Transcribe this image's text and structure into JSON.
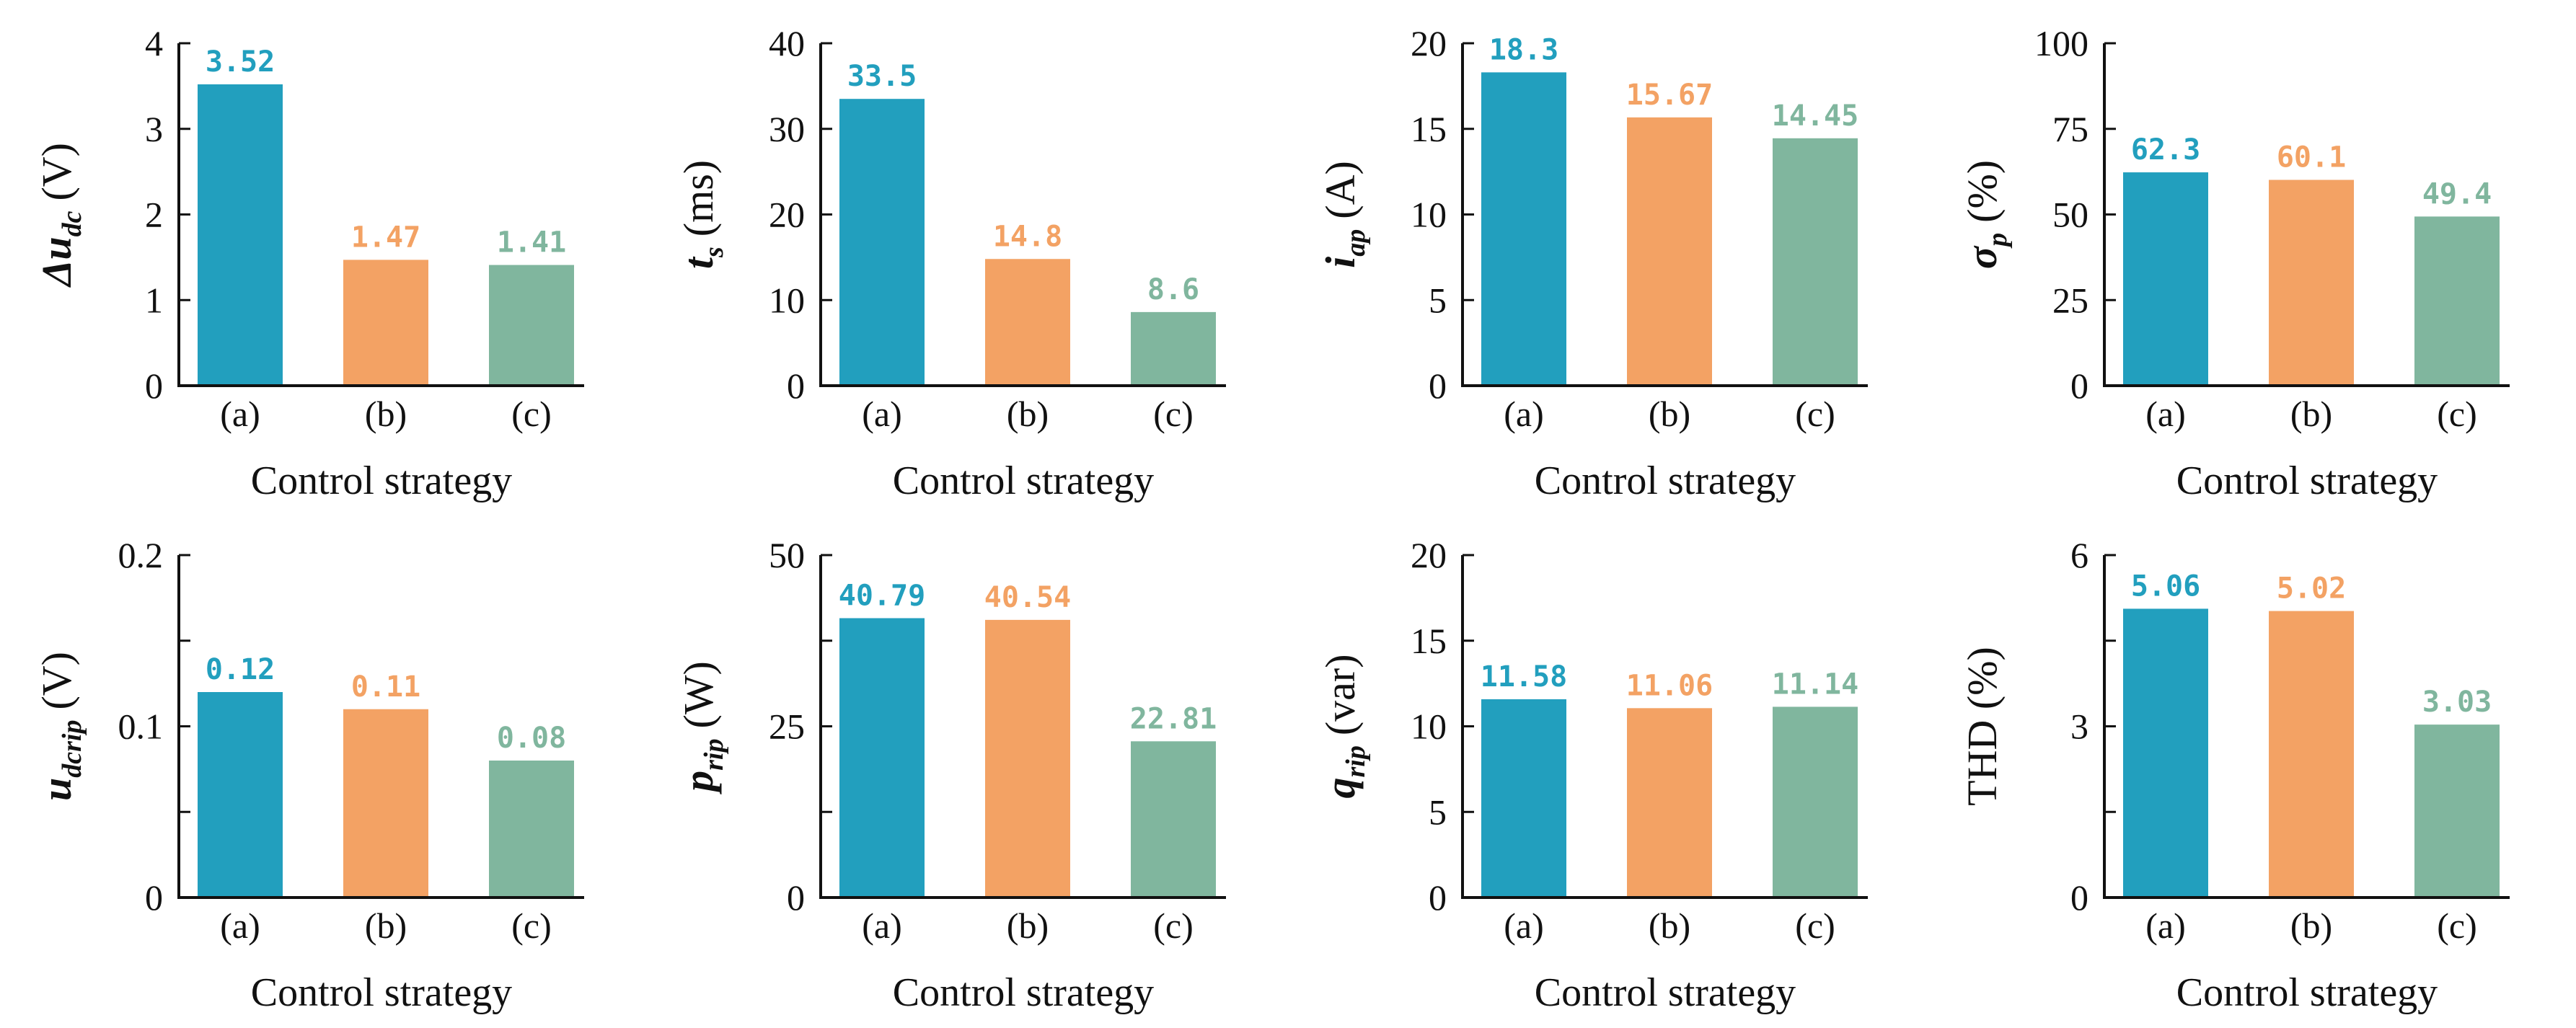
{
  "figure": {
    "caption": ""
  },
  "colors": {
    "a": "#229FBE",
    "b": "#F3A264",
    "c": "#80B69E",
    "axis": "#111111"
  },
  "chart_data": [
    {
      "type": "bar",
      "id": "delta-udc",
      "categories": [
        "(a)",
        "(b)",
        "(c)"
      ],
      "values": [
        3.52,
        1.47,
        1.41
      ],
      "value_labels": [
        "3.52",
        "1.47",
        "1.41"
      ],
      "ylim": [
        0,
        4
      ],
      "yticks": [
        0,
        1,
        2,
        3,
        4
      ],
      "ytick_labels": [
        "0",
        "1",
        "2",
        "3",
        "4"
      ],
      "xlabel": "Control strategy",
      "ylabel": {
        "symbol": "Δu",
        "sub": "dc",
        "unit": "(V)"
      }
    },
    {
      "type": "bar",
      "id": "ts",
      "categories": [
        "(a)",
        "(b)",
        "(c)"
      ],
      "values": [
        33.5,
        14.8,
        8.6
      ],
      "value_labels": [
        "33.5",
        "14.8",
        "8.6"
      ],
      "ylim": [
        0,
        40
      ],
      "yticks": [
        0,
        10,
        20,
        30,
        40
      ],
      "ytick_labels": [
        "0",
        "10",
        "20",
        "30",
        "40"
      ],
      "xlabel": "Control strategy",
      "ylabel": {
        "symbol": "t",
        "sub": "s",
        "unit": "(ms)"
      }
    },
    {
      "type": "bar",
      "id": "iap",
      "categories": [
        "(a)",
        "(b)",
        "(c)"
      ],
      "values": [
        18.3,
        15.67,
        14.45
      ],
      "value_labels": [
        "18.3",
        "15.67",
        "14.45"
      ],
      "ylim": [
        0,
        20
      ],
      "yticks": [
        0,
        5,
        10,
        15,
        20
      ],
      "ytick_labels": [
        "0",
        "5",
        "10",
        "15",
        "20"
      ],
      "xlabel": "Control strategy",
      "ylabel": {
        "symbol": "i",
        "sub": "ap",
        "unit": "(A)"
      }
    },
    {
      "type": "bar",
      "id": "sigma-p",
      "categories": [
        "(a)",
        "(b)",
        "(c)"
      ],
      "values": [
        62.3,
        60.1,
        49.4
      ],
      "value_labels": [
        "62.3",
        "60.1",
        "49.4"
      ],
      "ylim": [
        0,
        100
      ],
      "yticks": [
        0,
        25,
        50,
        75,
        100
      ],
      "ytick_labels": [
        "0",
        "25",
        "50",
        "75",
        "100"
      ],
      "xlabel": "Control strategy",
      "ylabel": {
        "symbol": "σ",
        "sub": "p",
        "unit": "(%)"
      }
    },
    {
      "type": "bar",
      "id": "udcrip",
      "categories": [
        "(a)",
        "(b)",
        "(c)"
      ],
      "values": [
        0.12,
        0.11,
        0.08
      ],
      "value_labels": [
        "0.12",
        "0.11",
        "0.08"
      ],
      "ylim": [
        0,
        0.2
      ],
      "yticks": [
        0,
        0.05,
        0.1,
        0.15,
        0.2
      ],
      "ytick_labels": [
        "0",
        "",
        "0.1",
        "",
        "0.2"
      ],
      "xlabel": "Control strategy",
      "ylabel": {
        "symbol": "u",
        "sub": "dcrip",
        "unit": "(V)"
      }
    },
    {
      "type": "bar",
      "id": "prip",
      "categories": [
        "(a)",
        "(b)",
        "(c)"
      ],
      "values": [
        40.79,
        40.54,
        22.81
      ],
      "value_labels": [
        "40.79",
        "40.54",
        "22.81"
      ],
      "ylim": [
        0,
        50
      ],
      "yticks": [
        0,
        12.5,
        25,
        37.5,
        50
      ],
      "ytick_labels": [
        "0",
        "",
        "25",
        "",
        "50"
      ],
      "xlabel": "Control strategy",
      "ylabel": {
        "symbol": "p",
        "sub": "rip",
        "unit": "(W)"
      }
    },
    {
      "type": "bar",
      "id": "qrip",
      "categories": [
        "(a)",
        "(b)",
        "(c)"
      ],
      "values": [
        11.58,
        11.06,
        11.14
      ],
      "value_labels": [
        "11.58",
        "11.06",
        "11.14"
      ],
      "ylim": [
        0,
        20
      ],
      "yticks": [
        0,
        5,
        10,
        15,
        20
      ],
      "ytick_labels": [
        "0",
        "5",
        "10",
        "15",
        "20"
      ],
      "xlabel": "Control strategy",
      "ylabel": {
        "symbol": "q",
        "sub": "rip",
        "unit": "(var)"
      }
    },
    {
      "type": "bar",
      "id": "thd",
      "categories": [
        "(a)",
        "(b)",
        "(c)"
      ],
      "values": [
        5.06,
        5.02,
        3.03
      ],
      "value_labels": [
        "5.06",
        "5.02",
        "3.03"
      ],
      "ylim": [
        0,
        6
      ],
      "yticks": [
        0,
        1.5,
        3,
        4.5,
        6
      ],
      "ytick_labels": [
        "0",
        "",
        "3",
        "",
        "6"
      ],
      "xlabel": "Control strategy",
      "ylabel": {
        "symbol": "",
        "sub": "",
        "unit": "THD (%)"
      }
    }
  ]
}
